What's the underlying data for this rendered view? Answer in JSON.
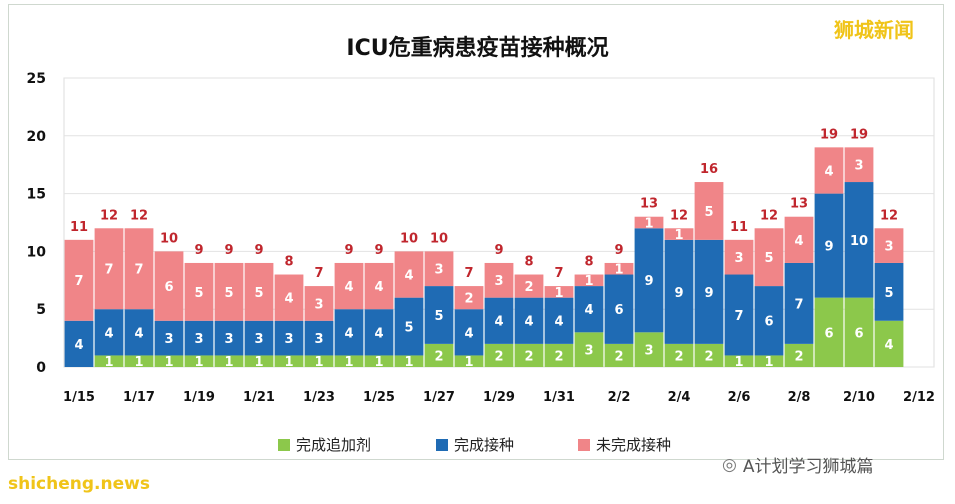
{
  "title": "ICU危重病患疫苗接种概况",
  "watermark_top": "狮城新闻",
  "watermark_bottom": "shicheng.news",
  "watermark_account": "A计划学习狮城篇",
  "colors": {
    "booster": "#8cc84b",
    "complete": "#1f6bb4",
    "incomplete": "#f08588",
    "total": "#c0262d"
  },
  "chart_data": {
    "type": "bar",
    "stacked": true,
    "categories": [
      "1/15",
      "1/16",
      "1/17",
      "1/18",
      "1/19",
      "1/20",
      "1/21",
      "1/22",
      "1/23",
      "1/24",
      "1/25",
      "1/26",
      "1/27",
      "1/28",
      "1/29",
      "1/30",
      "1/31",
      "2/1",
      "2/2",
      "2/3",
      "2/4",
      "2/5",
      "2/6",
      "2/7",
      "2/8",
      "2/9",
      "2/10",
      "2/11",
      "2/12"
    ],
    "xtick_labels": [
      "1/15",
      "",
      "1/17",
      "",
      "1/19",
      "",
      "1/21",
      "",
      "1/23",
      "",
      "1/25",
      "",
      "1/27",
      "",
      "1/29",
      "",
      "1/31",
      "",
      "2/2",
      "",
      "2/4",
      "",
      "2/6",
      "",
      "2/8",
      "",
      "2/10",
      "",
      "2/12"
    ],
    "series": [
      {
        "name": "完成追加剂",
        "values": [
          0,
          1,
          1,
          1,
          1,
          1,
          1,
          1,
          1,
          1,
          1,
          1,
          2,
          1,
          2,
          2,
          2,
          3,
          2,
          3,
          2,
          2,
          1,
          1,
          2,
          6,
          6,
          4,
          0
        ],
        "labels": [
          "",
          "1",
          "1",
          "1",
          "1",
          "1",
          "1",
          "1",
          "1",
          "1",
          "1",
          "1",
          "2",
          "1",
          "2",
          "2",
          "2",
          "3",
          "2",
          "3",
          "2",
          "2",
          "1",
          "1",
          "2",
          "6",
          "6",
          "4",
          ""
        ]
      },
      {
        "name": "完成接种",
        "values": [
          4,
          4,
          4,
          3,
          3,
          3,
          3,
          3,
          3,
          4,
          4,
          5,
          5,
          4,
          4,
          4,
          4,
          4,
          6,
          9,
          9,
          9,
          7,
          6,
          7,
          9,
          10,
          5,
          0
        ],
        "labels": [
          "4",
          "4",
          "4",
          "3",
          "3",
          "3",
          "3",
          "3",
          "3",
          "4",
          "4",
          "5",
          "5",
          "4",
          "4",
          "4",
          "4",
          "4",
          "6",
          "9",
          "9",
          "9",
          "7",
          "6",
          "7",
          "9",
          "10",
          "5",
          ""
        ]
      },
      {
        "name": "未完成接种",
        "values": [
          7,
          7,
          7,
          6,
          5,
          5,
          5,
          4,
          3,
          4,
          4,
          4,
          3,
          2,
          3,
          2,
          1,
          1,
          1,
          1,
          1,
          5,
          3,
          5,
          4,
          4,
          3,
          3,
          0
        ],
        "labels": [
          "7",
          "7",
          "7",
          "6",
          "5",
          "5",
          "5",
          "4",
          "3",
          "4",
          "4",
          "4",
          "3",
          "2",
          "3",
          "2",
          "1",
          "1",
          "1",
          "1",
          "1",
          "5",
          "3",
          "5",
          "4",
          "4",
          "3",
          "3",
          ""
        ]
      }
    ],
    "totals": [
      "11",
      "12",
      "12",
      "10",
      "9",
      "9",
      "9",
      "8",
      "7",
      "9",
      "9",
      "10",
      "10",
      "7",
      "9",
      "8",
      "7",
      "8",
      "9",
      "13",
      "12",
      "16",
      "11",
      "12",
      "13",
      "19",
      "19",
      "12",
      ""
    ],
    "ylim": [
      0,
      25
    ],
    "yticks": [
      "0",
      "5",
      "10",
      "15",
      "20",
      "25"
    ],
    "grid": true,
    "legend_position": "bottom"
  }
}
